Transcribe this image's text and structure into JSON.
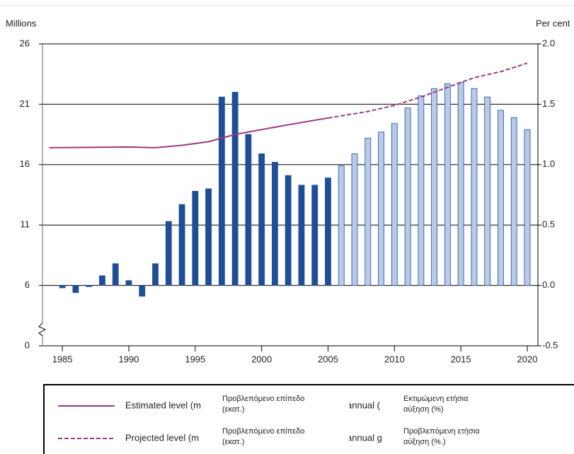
{
  "chart_data": {
    "type": "combo",
    "y_label": "Millions",
    "y2_label": "Per cent",
    "xlim": [
      1983.5,
      2020.8
    ],
    "xticks": [
      1985,
      1990,
      1995,
      2000,
      2005,
      2010,
      2015,
      2020
    ],
    "ylim": [
      0,
      26
    ],
    "yticks": [
      0,
      6,
      11,
      16,
      21,
      26
    ],
    "axis_break": true,
    "y2lim": [
      -0.5,
      2.0
    ],
    "y2ticks": [
      {
        "value": -0.5,
        "label": "-0.5"
      },
      {
        "value": 0,
        "label": "0.0"
      },
      {
        "value": 0.5,
        "label": "0.5"
      },
      {
        "value": 1.0,
        "label": "1.0"
      },
      {
        "value": 1.5,
        "label": "1.5"
      },
      {
        "value": 2.0,
        "label": "2.0"
      }
    ],
    "grid": true,
    "series": [
      {
        "name": "Estimated level (m",
        "type": "line",
        "dashed": false,
        "color": "#9b3a7e",
        "x": [
          1984,
          1990,
          1992,
          1994,
          1996,
          1998,
          2000,
          2002,
          2005
        ],
        "values": [
          17.4,
          17.46,
          17.4,
          17.6,
          17.9,
          18.5,
          18.9,
          19.3,
          19.86
        ]
      },
      {
        "name": "Projected level (m",
        "type": "line",
        "dashed": true,
        "color": "#9b3a7e",
        "x": [
          2005,
          2008,
          2010,
          2012,
          2014,
          2016,
          2018,
          2020
        ],
        "values": [
          19.86,
          20.4,
          20.9,
          21.6,
          22.4,
          23.2,
          23.7,
          24.4
        ]
      },
      {
        "name": "annual (",
        "type": "bar",
        "axis": "y2",
        "color": "#1f4e96",
        "x": [
          1985,
          1986,
          1987,
          1988,
          1989,
          1990,
          1991,
          1992,
          1993,
          1994,
          1995,
          1996,
          1997,
          1998,
          1999,
          2000,
          2001,
          2002,
          2003,
          2004,
          2005
        ],
        "values": [
          -0.02,
          -0.06,
          -0.01,
          0.08,
          0.18,
          0.04,
          -0.09,
          0.18,
          0.53,
          0.67,
          0.78,
          0.8,
          1.56,
          1.6,
          1.25,
          1.09,
          1.02,
          0.91,
          0.83,
          0.83,
          0.89
        ]
      },
      {
        "name": "annual g",
        "type": "bar",
        "axis": "y2",
        "color": "#b9c9e8",
        "x": [
          2006,
          2007,
          2008,
          2009,
          2010,
          2011,
          2012,
          2013,
          2014,
          2015,
          2016,
          2017,
          2018,
          2019,
          2020
        ],
        "values": [
          0.99,
          1.09,
          1.22,
          1.27,
          1.34,
          1.47,
          1.57,
          1.63,
          1.67,
          1.68,
          1.63,
          1.56,
          1.45,
          1.39,
          1.29
        ]
      }
    ],
    "overlay_labels": [
      "Προβλεπόμενο επίπεδο (εκατ.)",
      "Προβλεπόμενο επίπεδο (εκατ.)",
      "Εκτιμώμενη ετήσια αύξηση (%)",
      "Προβλεπόμενη ετήσια αύξηση (%.)"
    ]
  }
}
